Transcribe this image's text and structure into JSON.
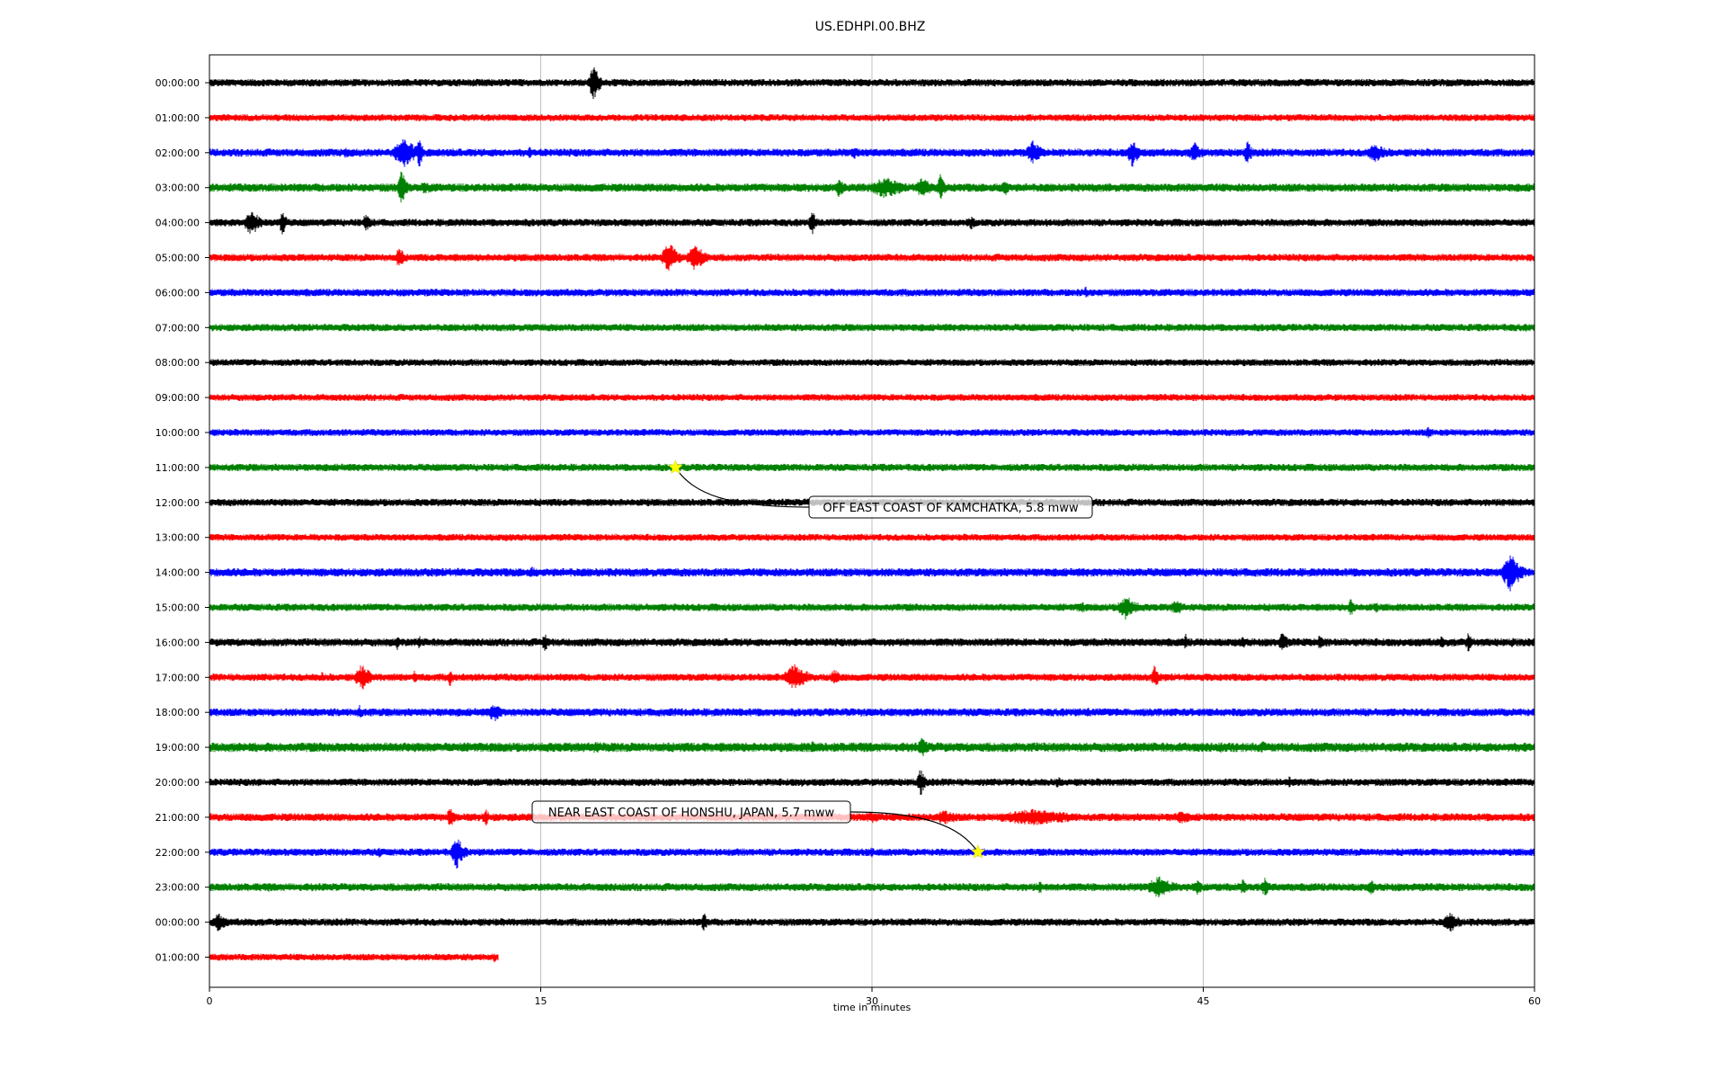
{
  "chart_data": {
    "type": "line",
    "title": "US.EDHPI.00.BHZ",
    "xlabel": "time in minutes",
    "ylabel": "",
    "xlim": [
      0,
      60
    ],
    "x_ticks": [
      "0",
      "15",
      "30",
      "45",
      "60"
    ],
    "grid": "vertical lines at x ticks",
    "rows": [
      {
        "label": "00:00:00",
        "color": "#000000",
        "end_min": 60,
        "noise": 0.3,
        "events": [
          {
            "t": 17.4,
            "a": 1.6,
            "d": 0.5
          }
        ]
      },
      {
        "label": "01:00:00",
        "color": "#ff0000",
        "end_min": 60,
        "noise": 0.28,
        "events": []
      },
      {
        "label": "02:00:00",
        "color": "#0000ff",
        "end_min": 60,
        "noise": 0.32,
        "events": [
          {
            "t": 6.2,
            "a": 0.5,
            "d": 0.5
          },
          {
            "t": 8.8,
            "a": 1.2,
            "d": 1.3
          },
          {
            "t": 9.5,
            "a": 1.4,
            "d": 0.3
          },
          {
            "t": 14.5,
            "a": 0.5,
            "d": 0.4
          },
          {
            "t": 29.2,
            "a": 0.6,
            "d": 0.5
          },
          {
            "t": 37.3,
            "a": 1.0,
            "d": 0.8
          },
          {
            "t": 41.8,
            "a": 1.2,
            "d": 0.6
          },
          {
            "t": 44.6,
            "a": 0.9,
            "d": 0.7
          },
          {
            "t": 47.0,
            "a": 1.1,
            "d": 0.4
          },
          {
            "t": 52.8,
            "a": 0.8,
            "d": 1.2
          }
        ]
      },
      {
        "label": "03:00:00",
        "color": "#008000",
        "end_min": 60,
        "noise": 0.34,
        "events": [
          {
            "t": 8.7,
            "a": 1.6,
            "d": 0.4
          },
          {
            "t": 9.8,
            "a": 0.5,
            "d": 1.5
          },
          {
            "t": 28.5,
            "a": 0.8,
            "d": 0.6
          },
          {
            "t": 30.6,
            "a": 0.9,
            "d": 1.8
          },
          {
            "t": 32.3,
            "a": 0.8,
            "d": 1.2
          },
          {
            "t": 33.1,
            "a": 1.1,
            "d": 0.4
          },
          {
            "t": 36.0,
            "a": 0.8,
            "d": 0.5
          }
        ]
      },
      {
        "label": "04:00:00",
        "color": "#000000",
        "end_min": 60,
        "noise": 0.3,
        "events": [
          {
            "t": 1.9,
            "a": 1.1,
            "d": 0.8
          },
          {
            "t": 3.3,
            "a": 1.3,
            "d": 0.3
          },
          {
            "t": 7.1,
            "a": 0.9,
            "d": 0.4
          },
          {
            "t": 27.3,
            "a": 1.0,
            "d": 0.4
          },
          {
            "t": 34.5,
            "a": 0.6,
            "d": 0.5
          }
        ]
      },
      {
        "label": "05:00:00",
        "color": "#ff0000",
        "end_min": 60,
        "noise": 0.3,
        "events": [
          {
            "t": 8.6,
            "a": 1.0,
            "d": 0.4
          },
          {
            "t": 20.8,
            "a": 1.3,
            "d": 0.8
          },
          {
            "t": 22.0,
            "a": 1.1,
            "d": 1.0
          }
        ]
      },
      {
        "label": "06:00:00",
        "color": "#0000ff",
        "end_min": 60,
        "noise": 0.3,
        "events": [
          {
            "t": 39.7,
            "a": 0.6,
            "d": 0.3
          }
        ]
      },
      {
        "label": "07:00:00",
        "color": "#008000",
        "end_min": 60,
        "noise": 0.3,
        "events": []
      },
      {
        "label": "08:00:00",
        "color": "#000000",
        "end_min": 60,
        "noise": 0.28,
        "events": []
      },
      {
        "label": "09:00:00",
        "color": "#ff0000",
        "end_min": 60,
        "noise": 0.28,
        "events": []
      },
      {
        "label": "10:00:00",
        "color": "#0000ff",
        "end_min": 60,
        "noise": 0.28,
        "events": [
          {
            "t": 55.2,
            "a": 0.5,
            "d": 0.5
          }
        ]
      },
      {
        "label": "11:00:00",
        "color": "#008000",
        "end_min": 60,
        "noise": 0.3,
        "events": []
      },
      {
        "label": "12:00:00",
        "color": "#000000",
        "end_min": 60,
        "noise": 0.3,
        "events": [
          {
            "t": 59.0,
            "a": 0.4,
            "d": 0.4
          }
        ]
      },
      {
        "label": "13:00:00",
        "color": "#ff0000",
        "end_min": 60,
        "noise": 0.28,
        "events": []
      },
      {
        "label": "14:00:00",
        "color": "#0000ff",
        "end_min": 60,
        "noise": 0.34,
        "events": [
          {
            "t": 0.8,
            "a": 0.4,
            "d": 1.2
          },
          {
            "t": 14.6,
            "a": 0.5,
            "d": 0.7
          },
          {
            "t": 58.9,
            "a": 1.6,
            "d": 0.9
          }
        ]
      },
      {
        "label": "15:00:00",
        "color": "#008000",
        "end_min": 60,
        "noise": 0.3,
        "events": [
          {
            "t": 39.5,
            "a": 0.5,
            "d": 0.8
          },
          {
            "t": 41.5,
            "a": 1.0,
            "d": 1.0
          },
          {
            "t": 43.8,
            "a": 0.6,
            "d": 1.0
          },
          {
            "t": 51.7,
            "a": 0.8,
            "d": 0.4
          },
          {
            "t": 52.8,
            "a": 0.5,
            "d": 0.4
          }
        ]
      },
      {
        "label": "16:00:00",
        "color": "#000000",
        "end_min": 60,
        "noise": 0.32,
        "events": [
          {
            "t": 8.5,
            "a": 0.7,
            "d": 0.3
          },
          {
            "t": 9.5,
            "a": 0.6,
            "d": 0.3
          },
          {
            "t": 15.2,
            "a": 0.8,
            "d": 0.4
          },
          {
            "t": 44.2,
            "a": 0.7,
            "d": 0.3
          },
          {
            "t": 46.8,
            "a": 0.6,
            "d": 0.3
          },
          {
            "t": 48.6,
            "a": 0.9,
            "d": 0.5
          },
          {
            "t": 50.3,
            "a": 0.6,
            "d": 0.7
          },
          {
            "t": 55.8,
            "a": 0.6,
            "d": 0.3
          },
          {
            "t": 57.0,
            "a": 0.8,
            "d": 0.4
          },
          {
            "t": 59.0,
            "a": 0.5,
            "d": 0.3
          }
        ]
      },
      {
        "label": "17:00:00",
        "color": "#ff0000",
        "end_min": 60,
        "noise": 0.3,
        "events": [
          {
            "t": 5.1,
            "a": 0.5,
            "d": 0.3
          },
          {
            "t": 6.9,
            "a": 1.1,
            "d": 0.8
          },
          {
            "t": 9.3,
            "a": 0.6,
            "d": 0.3
          },
          {
            "t": 10.9,
            "a": 0.8,
            "d": 0.3
          },
          {
            "t": 26.5,
            "a": 1.1,
            "d": 1.2
          },
          {
            "t": 28.3,
            "a": 0.7,
            "d": 0.6
          },
          {
            "t": 42.8,
            "a": 1.0,
            "d": 0.4
          }
        ]
      },
      {
        "label": "18:00:00",
        "color": "#0000ff",
        "end_min": 60,
        "noise": 0.32,
        "events": [
          {
            "t": 6.8,
            "a": 0.6,
            "d": 0.4
          },
          {
            "t": 12.9,
            "a": 0.8,
            "d": 0.8
          },
          {
            "t": 24.0,
            "a": 0.4,
            "d": 0.5
          },
          {
            "t": 29.5,
            "a": 0.4,
            "d": 0.4
          },
          {
            "t": 39.8,
            "a": 0.4,
            "d": 1.2
          },
          {
            "t": 60.0,
            "a": 0.4,
            "d": 0.4
          }
        ]
      },
      {
        "label": "19:00:00",
        "color": "#008000",
        "end_min": 60,
        "noise": 0.38,
        "events": [
          {
            "t": 10.8,
            "a": 0.4,
            "d": 1.5
          },
          {
            "t": 17.5,
            "a": 0.45,
            "d": 5.5
          },
          {
            "t": 27.3,
            "a": 0.6,
            "d": 0.4
          },
          {
            "t": 32.3,
            "a": 0.9,
            "d": 0.6
          },
          {
            "t": 45.8,
            "a": 0.5,
            "d": 0.4
          },
          {
            "t": 47.7,
            "a": 0.5,
            "d": 0.6
          }
        ]
      },
      {
        "label": "20:00:00",
        "color": "#000000",
        "end_min": 60,
        "noise": 0.3,
        "events": [
          {
            "t": 26.8,
            "a": 0.4,
            "d": 0.4
          },
          {
            "t": 32.2,
            "a": 1.2,
            "d": 0.4
          },
          {
            "t": 38.4,
            "a": 0.5,
            "d": 0.5
          },
          {
            "t": 48.9,
            "a": 0.5,
            "d": 0.4
          }
        ]
      },
      {
        "label": "21:00:00",
        "color": "#ff0000",
        "end_min": 60,
        "noise": 0.32,
        "events": [
          {
            "t": 10.9,
            "a": 0.9,
            "d": 0.4
          },
          {
            "t": 12.5,
            "a": 0.8,
            "d": 0.4
          },
          {
            "t": 30.0,
            "a": 0.5,
            "d": 1.5
          },
          {
            "t": 33.3,
            "a": 0.6,
            "d": 1.8
          },
          {
            "t": 37.3,
            "a": 0.7,
            "d": 5.0
          },
          {
            "t": 44.0,
            "a": 0.55,
            "d": 1.4
          }
        ]
      },
      {
        "label": "22:00:00",
        "color": "#0000ff",
        "end_min": 60,
        "noise": 0.3,
        "events": [
          {
            "t": 7.7,
            "a": 0.5,
            "d": 0.3
          },
          {
            "t": 11.2,
            "a": 1.4,
            "d": 0.6
          },
          {
            "t": 30.0,
            "a": 0.5,
            "d": 0.3
          },
          {
            "t": 34.8,
            "a": 0.4,
            "d": 0.3
          }
        ]
      },
      {
        "label": "23:00:00",
        "color": "#008000",
        "end_min": 60,
        "noise": 0.32,
        "events": [
          {
            "t": 2.7,
            "a": 0.4,
            "d": 0.4
          },
          {
            "t": 37.6,
            "a": 0.6,
            "d": 0.3
          },
          {
            "t": 43.0,
            "a": 0.9,
            "d": 1.5
          },
          {
            "t": 44.7,
            "a": 0.7,
            "d": 0.6
          },
          {
            "t": 46.8,
            "a": 0.7,
            "d": 0.4
          },
          {
            "t": 47.8,
            "a": 0.8,
            "d": 0.5
          },
          {
            "t": 52.6,
            "a": 0.7,
            "d": 0.4
          }
        ]
      },
      {
        "label": "00:00:00",
        "color": "#000000",
        "end_min": 60,
        "noise": 0.3,
        "events": [
          {
            "t": 0.4,
            "a": 0.8,
            "d": 0.8
          },
          {
            "t": 22.4,
            "a": 0.9,
            "d": 0.3
          },
          {
            "t": 56.2,
            "a": 0.8,
            "d": 1.0
          }
        ]
      },
      {
        "label": "01:00:00",
        "color": "#ff0000",
        "end_min": 13.1,
        "noise": 0.28,
        "events": [
          {
            "t": 12.9,
            "a": 0.5,
            "d": 0.2
          }
        ]
      }
    ],
    "events": [
      {
        "label": "OFF EAST COAST OF KAMCHATKA, 5.8 mww",
        "row": 11,
        "minute": 21.1,
        "marker_color": "#ffff00"
      },
      {
        "label": "NEAR EAST COAST OF HONSHU, JAPAN, 5.7 mww",
        "row": 22,
        "minute": 34.8,
        "marker_color": "#ffff00"
      }
    ]
  }
}
